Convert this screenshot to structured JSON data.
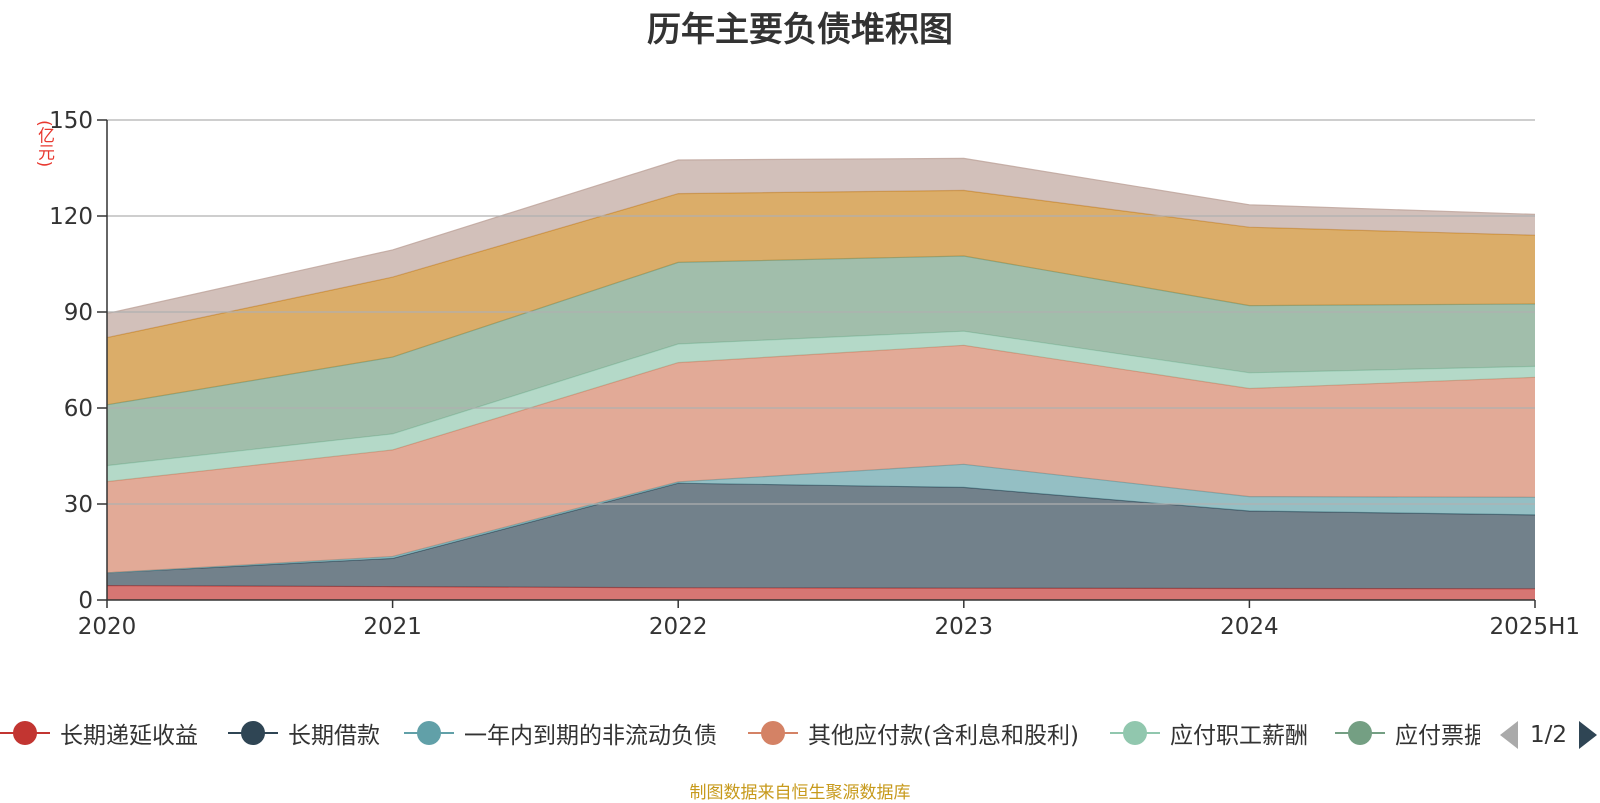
{
  "title": "历年主要负债堆积图",
  "unit": "(亿元)",
  "source_note": "制图数据来自恒生聚源数据库",
  "legend_page": "1/2",
  "chart_data": {
    "type": "area",
    "stacked": true,
    "title": "历年主要负债堆积图",
    "ylabel": "(亿元)",
    "categories": [
      "2020",
      "2021",
      "2022",
      "2023",
      "2024",
      "2025H1"
    ],
    "ylim": [
      0,
      150
    ],
    "yticks": [
      0,
      30,
      60,
      90,
      120,
      150
    ],
    "grid": true,
    "legend_position": "bottom",
    "series": [
      {
        "name": "长期递延收益",
        "color": "#c23531",
        "values": [
          4.5,
          4.2,
          3.8,
          3.7,
          3.6,
          3.5
        ]
      },
      {
        "name": "长期借款",
        "color": "#2f4554",
        "values": [
          4,
          8.8,
          32.7,
          31.5,
          24.2,
          23.1
        ]
      },
      {
        "name": "一年内到期的非流动负债",
        "color": "#61a0a8",
        "values": [
          0,
          0.6,
          0.4,
          7.2,
          4.5,
          5.5
        ]
      },
      {
        "name": "其他应付款(含利息和股利)",
        "color": "#d48265",
        "values": [
          28.5,
          33.3,
          37.3,
          37.2,
          33.8,
          37.5
        ]
      },
      {
        "name": "应付职工薪酬",
        "color": "#91c7ae",
        "values": [
          5,
          5,
          5.8,
          4.4,
          4.9,
          3.4
        ]
      },
      {
        "name": "应付票据",
        "color": "#749f83",
        "values": [
          19,
          24,
          25.5,
          23.5,
          21,
          19.5
        ]
      },
      {
        "name": "",
        "color": "#ca8622",
        "values": [
          21,
          25,
          21.5,
          20.5,
          24.5,
          21.5
        ]
      },
      {
        "name": "",
        "color": "#bda29a",
        "values": [
          7.5,
          8.5,
          10.5,
          10,
          7,
          6.5
        ]
      }
    ]
  },
  "legend": {
    "items": [
      {
        "label": "长期递延收益",
        "color": "#c23531"
      },
      {
        "label": "长期借款",
        "color": "#2f4554"
      },
      {
        "label": "一年内到期的非流动负债",
        "color": "#61a0a8"
      },
      {
        "label": "其他应付款(含利息和股利)",
        "color": "#d48265"
      },
      {
        "label": "应付职工薪酬",
        "color": "#91c7ae"
      },
      {
        "label": "应付票据",
        "color": "#749f83"
      }
    ]
  }
}
